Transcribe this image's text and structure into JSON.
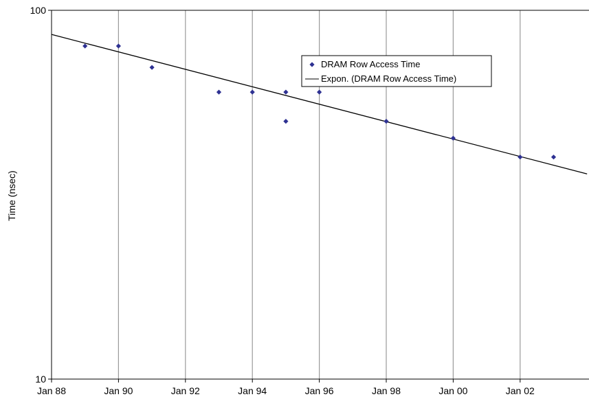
{
  "chart_data": {
    "type": "scatter",
    "title": "",
    "xlabel": "",
    "ylabel": "Time (nsec)",
    "yscale": "log",
    "ylim": [
      10,
      100
    ],
    "xlim": [
      "Jan 88",
      "Jan 04"
    ],
    "grid": {
      "vertical": true,
      "horizontal": false
    },
    "legend_position": "top-right",
    "x_tick_labels": [
      "Jan 88",
      "Jan 90",
      "Jan 92",
      "Jan 94",
      "Jan 96",
      "Jan 98",
      "Jan 00",
      "Jan 02"
    ],
    "y_tick_labels": [
      "100",
      "10"
    ],
    "x_axis_years": [
      1988,
      1990,
      1992,
      1994,
      1996,
      1998,
      2000,
      2002
    ],
    "series": [
      {
        "name": "DRAM Row Access Time",
        "kind": "points",
        "color": "#2e3192",
        "marker": "diamond",
        "points": [
          {
            "x": "Jan 89",
            "y": 80
          },
          {
            "x": "Jan 90",
            "y": 80
          },
          {
            "x": "Jan 91",
            "y": 70
          },
          {
            "x": "Jan 93",
            "y": 60
          },
          {
            "x": "Jan 94",
            "y": 60
          },
          {
            "x": "Jan 95",
            "y": 60
          },
          {
            "x": "Jan 95",
            "y": 50
          },
          {
            "x": "Jan 96",
            "y": 60
          },
          {
            "x": "Jan 98",
            "y": 50
          },
          {
            "x": "Jan 00",
            "y": 45
          },
          {
            "x": "Jan 02",
            "y": 40
          },
          {
            "x": "Jan 03",
            "y": 40
          }
        ]
      },
      {
        "name": "Expon. (DRAM Row Access Time)",
        "kind": "trendline",
        "color": "#000000",
        "points": [
          {
            "x": "Jan 88",
            "y": 86
          },
          {
            "x": "Jan 04",
            "y": 36
          }
        ]
      }
    ]
  }
}
